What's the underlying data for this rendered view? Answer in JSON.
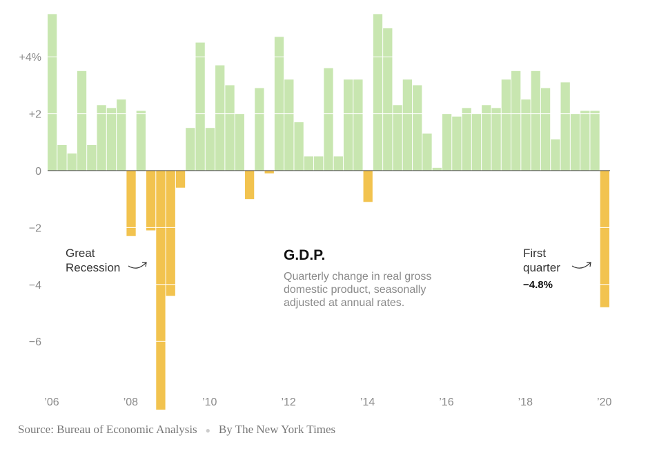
{
  "chart_data": {
    "type": "bar",
    "title": "G.D.P.",
    "subtitle_lines": [
      "Quarterly change in real gross",
      "domestic product, seasonally",
      "adjusted at annual rates."
    ],
    "ylim": [
      -8.3,
      5.5
    ],
    "yticks": [
      {
        "value": 4,
        "label": "+4%"
      },
      {
        "value": 2,
        "label": "+2"
      },
      {
        "value": 0,
        "label": "0"
      },
      {
        "value": -2,
        "label": "−2"
      },
      {
        "value": -4,
        "label": "−4"
      },
      {
        "value": -6,
        "label": "−6"
      }
    ],
    "xticks": [
      {
        "index": 0,
        "label": "’06"
      },
      {
        "index": 8,
        "label": "’08"
      },
      {
        "index": 16,
        "label": "’10"
      },
      {
        "index": 24,
        "label": "’12"
      },
      {
        "index": 32,
        "label": "’14"
      },
      {
        "index": 40,
        "label": "’16"
      },
      {
        "index": 48,
        "label": "’18"
      },
      {
        "index": 56,
        "label": "’20"
      }
    ],
    "positive_color": "#c8e6b0",
    "negative_color": "#f2c34f",
    "values": [
      5.5,
      0.9,
      0.6,
      3.5,
      0.9,
      2.3,
      2.2,
      2.5,
      -2.3,
      2.1,
      -2.1,
      -8.4,
      -4.4,
      -0.6,
      1.5,
      4.5,
      1.5,
      3.7,
      3.0,
      2.0,
      -1.0,
      2.9,
      -0.1,
      4.7,
      3.2,
      1.7,
      0.5,
      0.5,
      3.6,
      0.5,
      3.2,
      3.2,
      -1.1,
      5.5,
      5.0,
      2.3,
      3.2,
      3.0,
      1.3,
      0.1,
      2.0,
      1.9,
      2.2,
      2.0,
      2.3,
      2.2,
      3.2,
      3.5,
      2.5,
      3.5,
      2.9,
      1.1,
      3.1,
      2.0,
      2.1,
      2.1,
      -4.8
    ],
    "annotations": [
      {
        "lines": [
          "Great",
          "Recession"
        ],
        "target_index": 11
      },
      {
        "lines": [
          "First",
          "quarter"
        ],
        "value_label": "−4.8%",
        "target_index": 56
      }
    ]
  },
  "footer": {
    "source": "Source: Bureau of Economic Analysis",
    "separator": "●",
    "byline": "By The New York Times"
  }
}
